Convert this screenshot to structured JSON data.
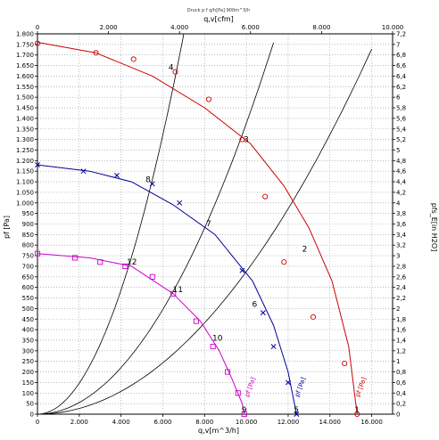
{
  "chart_data": {
    "type": "line",
    "title": "Druck p f q/h[Pa] 900m^3/h",
    "xlabel": "q,v[m^3/h]",
    "x2label": "q,v[cfm]",
    "ylabel": "pf [Pa]",
    "y2label": "pfs_E[in H2O]",
    "xlim": [
      0,
      17000
    ],
    "x2lim": [
      0,
      10000
    ],
    "ylim": [
      0,
      1800
    ],
    "y2lim": [
      0,
      7.2
    ],
    "x_ticks": [
      0,
      2000,
      4000,
      6000,
      8000,
      10000,
      12000,
      14000,
      16000
    ],
    "x_tick_labels": [
      "0",
      "2.000",
      "4.000",
      "6.000",
      "8.000",
      "10.000",
      "12.000",
      "14.000",
      "16.000"
    ],
    "x2_ticks": [
      0,
      2000,
      4000,
      6000,
      8000,
      10000
    ],
    "x2_tick_labels": [
      "0",
      "2.000",
      "4.000",
      "6.000",
      "8.000",
      "10.000"
    ],
    "y_ticks": [
      0,
      50,
      100,
      150,
      200,
      250,
      300,
      350,
      400,
      450,
      500,
      550,
      600,
      650,
      700,
      750,
      800,
      850,
      900,
      950,
      1000,
      1050,
      1100,
      1150,
      1200,
      1250,
      1300,
      1350,
      1400,
      1450,
      1500,
      1550,
      1600,
      1650,
      1700,
      1750,
      1800
    ],
    "y_tick_labels": [
      "0",
      "50",
      "100",
      "150",
      "200",
      "250",
      "300",
      "350",
      "400",
      "450",
      "500",
      "550",
      "600",
      "650",
      "700",
      "750",
      "800",
      "850",
      "900",
      "950",
      "1.000",
      "1.050",
      "1.100",
      "1.150",
      "1.200",
      "1.250",
      "1.300",
      "1.350",
      "1.400",
      "1.450",
      "1.500",
      "1.550",
      "1.600",
      "1.650",
      "1.700",
      "1.750",
      "1.800"
    ],
    "y2_ticks": [
      0,
      0.2,
      0.4,
      0.6,
      0.8,
      1,
      1.2,
      1.4,
      1.6,
      1.8,
      2,
      2.2,
      2.4,
      2.6,
      2.8,
      3,
      3.2,
      3.4,
      3.6,
      3.8,
      4,
      4.2,
      4.4,
      4.6,
      4.8,
      5,
      5.2,
      5.4,
      5.6,
      5.8,
      6,
      6.2,
      6.4,
      6.6,
      6.8,
      7,
      7.2
    ],
    "y2_tick_labels": [
      "0",
      "0,2",
      "0,4",
      "0,6",
      "0,8",
      "1",
      "1,2",
      "1,4",
      "1,6",
      "1,8",
      "2",
      "2,2",
      "2,4",
      "2,6",
      "2,8",
      "3",
      "3,2",
      "3,4",
      "3,6",
      "3,8",
      "4",
      "4,2",
      "4,4",
      "4,6",
      "4,8",
      "5",
      "5,2",
      "5,4",
      "5,6",
      "5,8",
      "6",
      "6,2",
      "6,4",
      "6,6",
      "6,8",
      "7",
      "7,2"
    ],
    "grid": true,
    "series": [
      {
        "name": "pf [Pa]",
        "color": "#cc0000",
        "marker": "circle",
        "x": [
          0,
          2800,
          5500,
          8000,
          10200,
          11800,
          13000,
          14100,
          14900,
          15300
        ],
        "y": [
          1760,
          1710,
          1600,
          1450,
          1280,
          1080,
          880,
          630,
          320,
          0
        ],
        "markers_x": [
          0,
          2800,
          4600,
          6600,
          8200,
          9800,
          10900,
          11800,
          13200,
          14700,
          15300
        ],
        "markers_y": [
          1755,
          1710,
          1680,
          1620,
          1490,
          1300,
          1030,
          720,
          460,
          240,
          0
        ]
      },
      {
        "name": "pf [Pa]",
        "color": "#000099",
        "marker": "x",
        "x": [
          0,
          2500,
          4500,
          6500,
          8500,
          10300,
          11300,
          12000,
          12400
        ],
        "y": [
          1180,
          1150,
          1100,
          990,
          850,
          630,
          420,
          200,
          0
        ],
        "markers_x": [
          0,
          2200,
          3800,
          5500,
          6800,
          9800,
          10800,
          11300,
          12000,
          12400
        ],
        "markers_y": [
          1180,
          1150,
          1130,
          1090,
          1000,
          680,
          480,
          320,
          150,
          0
        ],
        "note": "pf [Pa]"
      },
      {
        "name": "pf [Pa]",
        "color": "#cc00cc",
        "marker": "square",
        "x": [
          0,
          2500,
          4500,
          6500,
          7800,
          8700,
          9300,
          9800,
          9900
        ],
        "y": [
          760,
          740,
          700,
          570,
          440,
          300,
          170,
          50,
          0
        ],
        "markers_x": [
          0,
          1800,
          3000,
          4200,
          5500,
          6500,
          7600,
          8400,
          9100,
          9600,
          9900
        ],
        "markers_y": [
          760,
          740,
          720,
          700,
          650,
          570,
          440,
          320,
          200,
          100,
          0
        ]
      }
    ],
    "system_curves": [
      {
        "k": 3.67e-05,
        "xmax": 7000
      },
      {
        "k": 1.377e-05,
        "xmax": 11300
      },
      {
        "k": 6.75e-06,
        "xmax": 16000
      }
    ],
    "operating_points": [
      {
        "label": "1",
        "x": 15300,
        "y": 0
      },
      {
        "label": "2",
        "x": 12800,
        "y": 760
      },
      {
        "label": "3",
        "x": 10000,
        "y": 1280
      },
      {
        "label": "4",
        "x": 6400,
        "y": 1620
      },
      {
        "label": "5",
        "x": 12400,
        "y": 0
      },
      {
        "label": "6",
        "x": 10400,
        "y": 500
      },
      {
        "label": "7",
        "x": 8200,
        "y": 880
      },
      {
        "label": "8",
        "x": 5300,
        "y": 1090
      },
      {
        "label": "9",
        "x": 9900,
        "y": 0
      },
      {
        "label": "10",
        "x": 8500,
        "y": 340
      },
      {
        "label": "11",
        "x": 6600,
        "y": 570
      },
      {
        "label": "12",
        "x": 4400,
        "y": 700
      }
    ],
    "curve_labels": [
      {
        "text": "pf [Pa]",
        "x": 15400,
        "y": 80,
        "color": "#cc0000"
      },
      {
        "text": "pf [Pa]",
        "x": 12500,
        "y": 80,
        "color": "#000099"
      },
      {
        "text": "pf [Pa]",
        "x": 10100,
        "y": 80,
        "color": "#cc00cc"
      }
    ]
  }
}
